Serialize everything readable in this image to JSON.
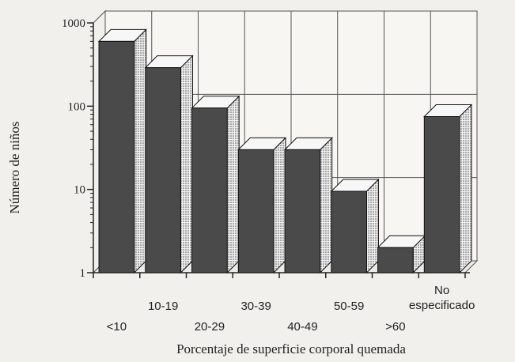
{
  "chart_data": {
    "type": "bar",
    "title": "",
    "xlabel": "Porcentaje de superficie corporal quemada",
    "ylabel": "Número de niños",
    "y_scale": "log",
    "ylim": [
      1,
      1000
    ],
    "y_ticks": [
      "1",
      "10",
      "100",
      "1000"
    ],
    "grid": true,
    "style": "3d",
    "categories": [
      "<10",
      "10-19",
      "20-29",
      "30-39",
      "40-49",
      "50-59",
      ">60",
      "No especificado"
    ],
    "category_label_lines": [
      [
        "<10"
      ],
      [
        "10-19"
      ],
      [
        "20-29"
      ],
      [
        "30-39"
      ],
      [
        "40-49"
      ],
      [
        "50-59"
      ],
      [
        ">60"
      ],
      [
        "No",
        "especificado"
      ]
    ],
    "category_label_row": [
      1,
      0,
      1,
      0,
      1,
      0,
      1,
      0
    ],
    "values": [
      600,
      290,
      95,
      30,
      30,
      9.5,
      2,
      75
    ],
    "colors": {
      "bar_front": "#4a4a4a",
      "bar_top": "#f7f7f7",
      "bar_side": "#d9d9d9",
      "grid": "#555555",
      "axis": "#222222"
    }
  }
}
